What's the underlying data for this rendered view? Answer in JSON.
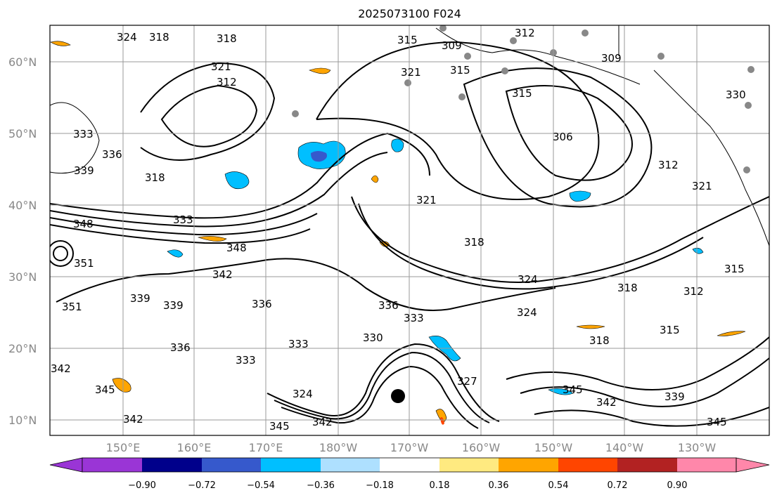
{
  "title": "2025073100 F024",
  "latitude_labels": [
    "60°N",
    "50°N",
    "40°N",
    "30°N",
    "20°N",
    "10°N"
  ],
  "longitude_labels": [
    "150°E",
    "160°E",
    "170°E",
    "180°W",
    "170°W",
    "160°W",
    "150°W",
    "140°W",
    "130°W"
  ],
  "colorbar": {
    "tick_labels": [
      "−0.90",
      "−0.72",
      "−0.54",
      "−0.36",
      "−0.18",
      "0.18",
      "0.36",
      "0.54",
      "0.72",
      "0.90"
    ],
    "colors": [
      "#9a35d6",
      "#00008b",
      "#3659cc",
      "#00bfff",
      "#aee0ff",
      "#ffffff",
      "#ffea80",
      "#ffa500",
      "#ff4500",
      "#b22222",
      "#ff87aa"
    ]
  },
  "contour_labels": [
    "324",
    "318",
    "318",
    "321",
    "312",
    "315",
    "309",
    "315",
    "321",
    "312",
    "309",
    "315",
    "306",
    "312",
    "321",
    "330",
    "333",
    "336",
    "339",
    "318",
    "348",
    "333",
    "348",
    "351",
    "342",
    "339",
    "339",
    "336",
    "351",
    "342",
    "345",
    "342",
    "336",
    "333",
    "336",
    "330",
    "333",
    "333",
    "324",
    "345",
    "342",
    "324",
    "324",
    "318",
    "315",
    "312",
    "318",
    "315",
    "345",
    "342",
    "339",
    "345",
    "327",
    "321",
    "318"
  ],
  "colors": {
    "land": "#000000",
    "grid": "#9a9a9a",
    "contour": "#000000"
  }
}
